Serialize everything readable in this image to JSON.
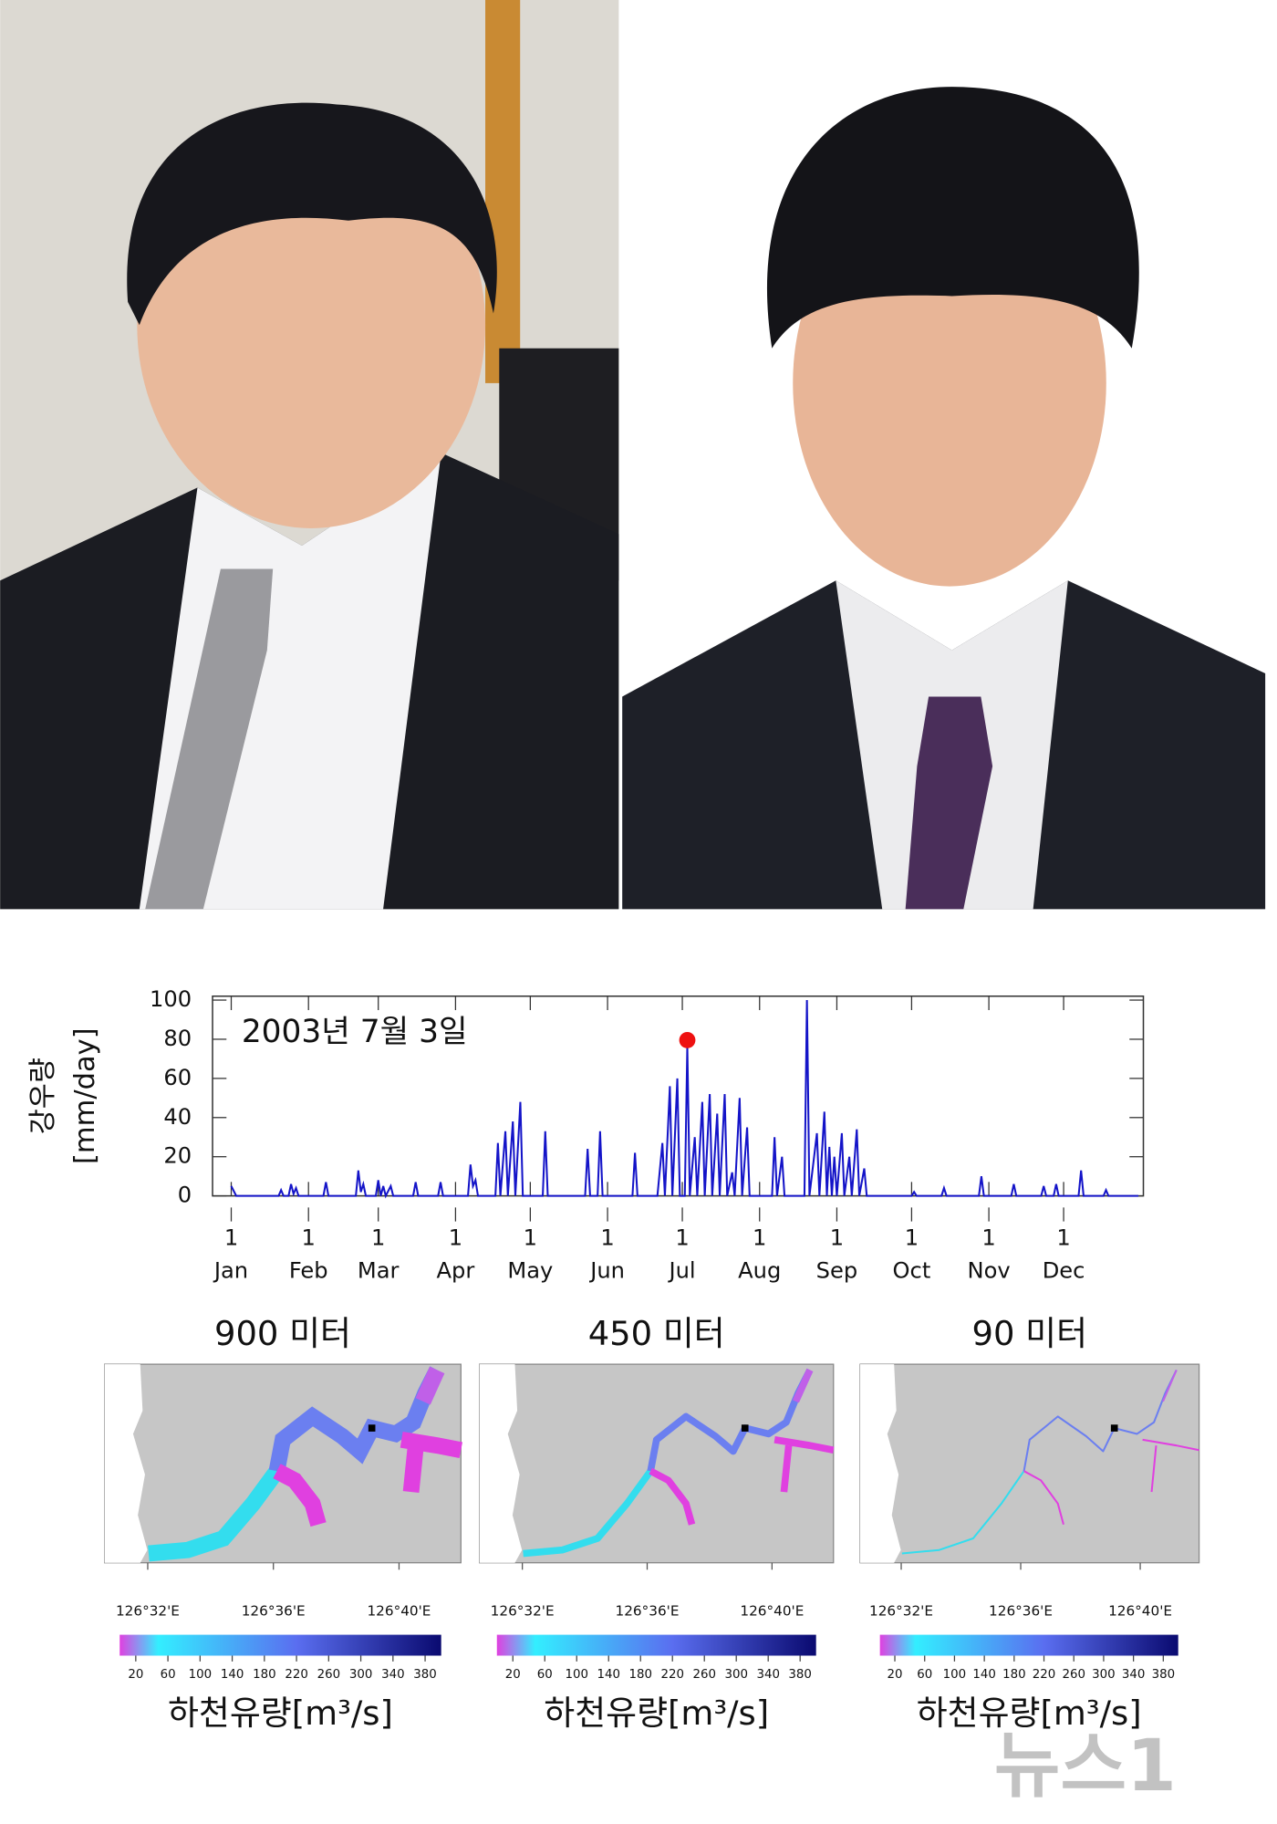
{
  "chart_data": [
    {
      "type": "line",
      "y_label": [
        "강우량",
        "[mm/day]"
      ],
      "annotation": "2003년 7월 3일",
      "x": [
        1,
        3,
        20,
        21,
        22,
        24,
        25,
        26,
        27,
        28,
        38,
        39,
        40,
        51,
        52,
        53,
        54,
        55,
        59,
        60,
        61,
        62,
        63,
        65,
        66,
        74,
        75,
        76,
        84,
        85,
        86,
        96,
        97,
        98,
        99,
        100,
        107,
        108,
        109,
        111,
        112,
        114,
        115,
        117,
        118,
        126,
        127,
        128,
        143,
        144,
        145,
        148,
        149,
        150,
        162,
        163,
        164,
        172,
        174,
        175,
        177,
        178,
        180,
        181,
        183,
        184,
        185,
        187,
        188,
        190,
        191,
        193,
        194,
        196,
        197,
        199,
        200,
        202,
        203,
        205,
        206,
        208,
        209,
        218,
        219,
        220,
        222,
        223,
        231,
        232,
        233,
        236,
        237,
        239,
        240,
        241,
        242,
        243,
        244,
        246,
        247,
        249,
        250,
        252,
        253,
        255,
        256,
        274,
        275,
        276,
        286,
        287,
        288,
        301,
        302,
        303,
        314,
        315,
        316,
        326,
        327,
        328,
        331,
        332,
        333,
        341,
        342,
        343,
        351,
        352,
        353,
        365
      ],
      "series": [
        {
          "color": "#1414c8",
          "values": [
            5,
            0,
            0,
            3,
            0,
            0,
            6,
            1,
            4,
            0,
            0,
            7,
            0,
            0,
            13,
            2,
            6,
            0,
            0,
            8,
            0,
            5,
            0,
            5,
            0,
            0,
            7,
            0,
            0,
            7,
            0,
            0,
            16,
            5,
            8,
            0,
            0,
            27,
            0,
            33,
            0,
            38,
            0,
            48,
            0,
            0,
            33,
            0,
            0,
            24,
            0,
            0,
            33,
            0,
            0,
            22,
            0,
            0,
            27,
            0,
            56,
            0,
            60,
            0,
            0,
            76,
            0,
            30,
            0,
            48,
            0,
            52,
            0,
            42,
            0,
            52,
            0,
            12,
            0,
            50,
            0,
            35,
            0,
            0,
            30,
            0,
            20,
            0,
            0,
            100,
            0,
            32,
            0,
            43,
            0,
            25,
            0,
            20,
            0,
            32,
            0,
            20,
            0,
            34,
            0,
            14,
            0,
            0,
            2,
            0,
            0,
            4,
            0,
            0,
            10,
            0,
            0,
            6,
            0,
            0,
            5,
            0,
            0,
            6,
            0,
            0,
            13,
            0,
            0,
            3,
            0,
            0
          ]
        }
      ],
      "highlight": {
        "x": 184,
        "color": "#ee1111"
      },
      "xlim": [
        -6.5,
        367
      ],
      "ylim": [
        0,
        102
      ],
      "yticks": [
        0,
        20,
        40,
        60,
        80,
        100
      ],
      "xticks": [
        {
          "value": 1,
          "label": "1"
        },
        {
          "value": 32,
          "label": "1"
        },
        {
          "value": 60,
          "label": "1"
        },
        {
          "value": 91,
          "label": "1"
        },
        {
          "value": 121,
          "label": "1"
        },
        {
          "value": 152,
          "label": "1"
        },
        {
          "value": 182,
          "label": "1"
        },
        {
          "value": 213,
          "label": "1"
        },
        {
          "value": 244,
          "label": "1"
        },
        {
          "value": 274,
          "label": "1"
        },
        {
          "value": 305,
          "label": "1"
        },
        {
          "value": 335,
          "label": "1"
        }
      ],
      "months": [
        "Jan",
        "Feb",
        "Mar",
        "Apr",
        "May",
        "Jun",
        "Jul",
        "Aug",
        "Sep",
        "Oct",
        "Nov",
        "Dec"
      ]
    },
    {
      "type": "map",
      "title": "900 미터",
      "xlim": [
        126.51,
        126.7
      ],
      "xticks": [
        {
          "value": 126.533,
          "label": "126°32'E"
        },
        {
          "value": 126.6,
          "label": "126°36'E"
        },
        {
          "value": 126.667,
          "label": "126°40'E"
        }
      ],
      "clim": [
        0,
        400
      ],
      "colorbar_ticks": [
        20,
        60,
        100,
        140,
        180,
        220,
        260,
        300,
        340,
        380
      ],
      "colorbar_label": "하천유량[m³/s]"
    },
    {
      "type": "map",
      "title": "450 미터",
      "xlim": [
        126.51,
        126.7
      ],
      "xticks": [
        {
          "value": 126.533,
          "label": "126°32'E"
        },
        {
          "value": 126.6,
          "label": "126°36'E"
        },
        {
          "value": 126.667,
          "label": "126°40'E"
        }
      ],
      "clim": [
        0,
        400
      ],
      "colorbar_ticks": [
        20,
        60,
        100,
        140,
        180,
        220,
        260,
        300,
        340,
        380
      ],
      "colorbar_label": "하천유량[m³/s]"
    },
    {
      "type": "map",
      "title": "90 미터",
      "xlim": [
        126.51,
        126.7
      ],
      "xticks": [
        {
          "value": 126.533,
          "label": "126°32'E"
        },
        {
          "value": 126.6,
          "label": "126°36'E"
        },
        {
          "value": 126.667,
          "label": "126°40'E"
        }
      ],
      "clim": [
        0,
        400
      ],
      "colorbar_ticks": [
        20,
        60,
        100,
        140,
        180,
        220,
        260,
        300,
        340,
        380
      ],
      "colorbar_label": "하천유량[m³/s]"
    }
  ],
  "watermark": "뉴스1"
}
